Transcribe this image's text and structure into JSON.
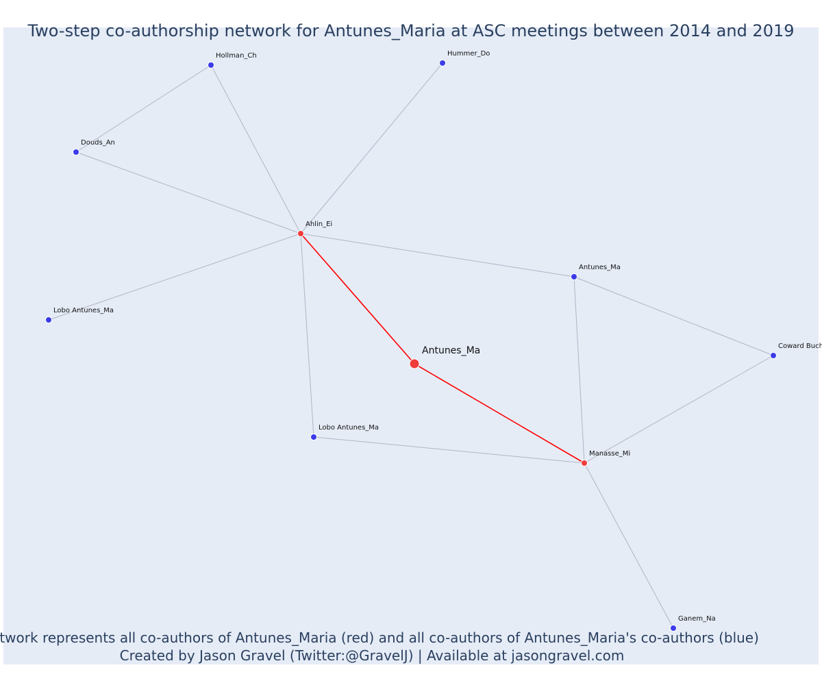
{
  "title": "Two-step co-authorship network for Antunes_Maria at ASC meetings between 2014 and 2019",
  "caption": {
    "line1": "Network represents all co-authors of Antunes_Maria (red) and all co-authors of Antunes_Maria's co-authors (blue)",
    "line2": "Created by Jason Gravel (Twitter:@GravelJ) | Available at jasongravel.com"
  },
  "colors": {
    "background": "#e5ecf6",
    "edge": "#b3b3c6",
    "red_edge": "#ff0000",
    "red_node": "#ef3b3b",
    "blue_node": "#3b3be8"
  },
  "nodes": [
    {
      "id": "center",
      "label": "Antunes_Ma",
      "type": "focal"
    },
    {
      "id": "ahlin",
      "label": "Ahlin_Ei",
      "type": "red"
    },
    {
      "id": "manasse",
      "label": "Manasse_Mi",
      "type": "red"
    },
    {
      "id": "hollman",
      "label": "Hollman_Ch",
      "type": "blue"
    },
    {
      "id": "hummer",
      "label": "Hummer_Do",
      "type": "blue"
    },
    {
      "id": "douds",
      "label": "Douds_An",
      "type": "blue"
    },
    {
      "id": "lobo1",
      "label": "Lobo Antunes_Ma",
      "type": "blue"
    },
    {
      "id": "antunes2",
      "label": "Antunes_Ma",
      "type": "blue"
    },
    {
      "id": "coward",
      "label": "Coward Buch",
      "type": "blue"
    },
    {
      "id": "lobo2",
      "label": "Lobo Antunes_Ma",
      "type": "blue"
    },
    {
      "id": "ganem",
      "label": "Ganem_Na",
      "type": "blue"
    }
  ],
  "edges": [
    {
      "source": "center",
      "target": "ahlin",
      "type": "red"
    },
    {
      "source": "center",
      "target": "manasse",
      "type": "red"
    },
    {
      "source": "ahlin",
      "target": "hollman",
      "type": "gray"
    },
    {
      "source": "ahlin",
      "target": "hummer",
      "type": "gray"
    },
    {
      "source": "ahlin",
      "target": "douds",
      "type": "gray"
    },
    {
      "source": "ahlin",
      "target": "lobo1",
      "type": "gray"
    },
    {
      "source": "ahlin",
      "target": "antunes2",
      "type": "gray"
    },
    {
      "source": "ahlin",
      "target": "lobo2",
      "type": "gray"
    },
    {
      "source": "hollman",
      "target": "douds",
      "type": "gray"
    },
    {
      "source": "antunes2",
      "target": "coward",
      "type": "gray"
    },
    {
      "source": "antunes2",
      "target": "manasse",
      "type": "gray"
    },
    {
      "source": "coward",
      "target": "manasse",
      "type": "gray"
    },
    {
      "source": "lobo2",
      "target": "manasse",
      "type": "gray"
    },
    {
      "source": "manasse",
      "target": "ganem",
      "type": "gray"
    }
  ]
}
